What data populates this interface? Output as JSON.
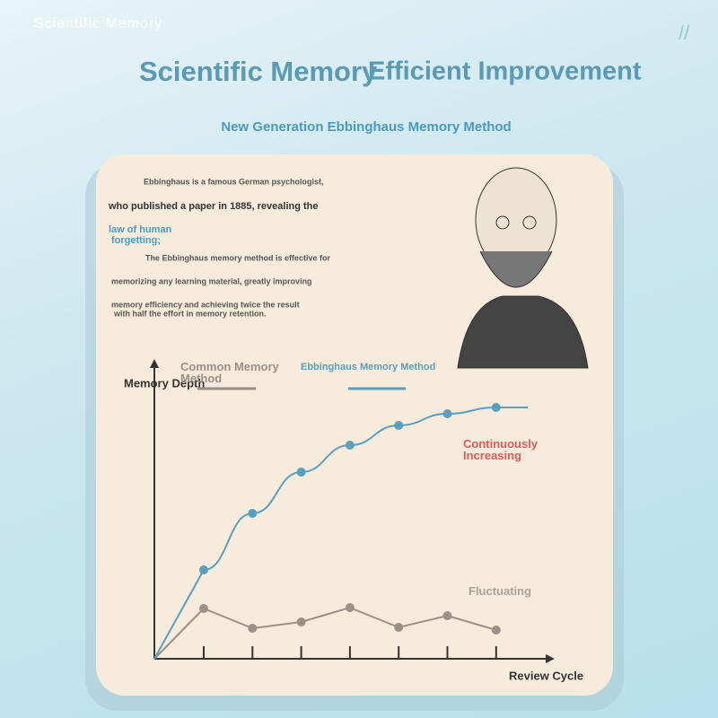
{
  "header": {
    "brand": "Scientific Memory",
    "mark": "//",
    "title": [
      "Scientific Memory",
      "Efficient Improvement"
    ],
    "subtitle": "New Generation Ebbinghaus Memory Method"
  },
  "description": [
    "Ebbinghaus is a famous German psychologist,",
    "who published a paper in 1885, revealing the",
    "law of human",
    "forgetting;",
    "The Ebbinghaus memory method is effective for",
    "memorizing any learning material, greatly improving",
    "memory efficiency and achieving twice the result",
    "with half the effort in memory retention."
  ],
  "chart_data": {
    "type": "line",
    "y_label": "Memory Depth",
    "x_label": "Review Cycle",
    "categories": [
      null,
      null,
      null,
      null,
      null,
      null,
      null
    ],
    "ylim": [
      0,
      334
    ],
    "series": [
      {
        "name": "Common Memory Method",
        "color": "#9a9088",
        "values": [
          56,
          34,
          41,
          57,
          35,
          48,
          32
        ]
      },
      {
        "name": "Ebbinghaus Memory Method",
        "color": "#5a9fc0",
        "values": [
          99,
          162,
          208,
          238,
          260,
          273,
          280
        ]
      }
    ],
    "annotations": [
      {
        "text": "Continuously Increasing",
        "color": "#e05a5a"
      },
      {
        "text": "Fluctuating",
        "color": "#a8a298"
      }
    ]
  }
}
